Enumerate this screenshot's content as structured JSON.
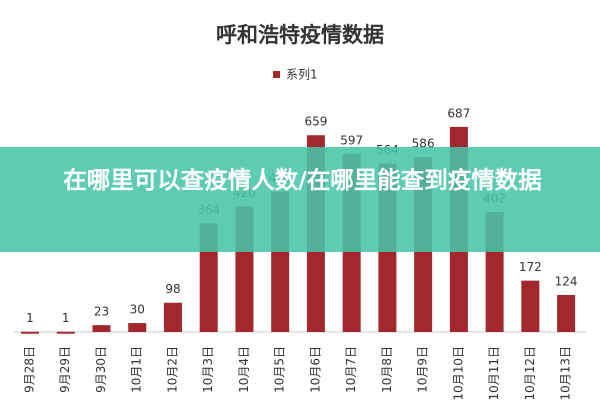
{
  "chart_data": {
    "type": "bar",
    "title": "呼和浩特疫情数据",
    "categories": [
      "9月28日",
      "9月29日",
      "9月30日",
      "10月1日",
      "10月2日",
      "10月3日",
      "10月4日",
      "10月5日",
      "10月6日",
      "10月7日",
      "10月8日",
      "10月9日",
      "10月10日",
      "10月11日",
      "10月12日",
      "10月13日"
    ],
    "series": [
      {
        "name": "系列1",
        "color": "#a3282d",
        "values": [
          1,
          1,
          23,
          30,
          98,
          364,
          420,
          470,
          659,
          597,
          564,
          586,
          687,
          402,
          172,
          124
        ]
      }
    ],
    "ylim": [
      0,
      700
    ],
    "legend": "top",
    "grid": false
  },
  "banner": "在哪里可以查疫情人数/在哪里能查到疫情数据"
}
